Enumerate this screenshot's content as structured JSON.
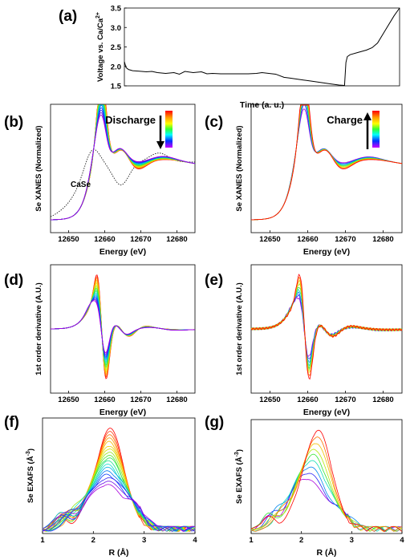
{
  "chart_data": [
    {
      "id": "a",
      "panel_label": "(a)",
      "type": "line",
      "xlabel": "Time (a. u.)",
      "ylabel": "Voltage vs. Ca/Ca",
      "ylabel_sup": "2+",
      "xlim": [
        0,
        100
      ],
      "ylim": [
        1.5,
        3.5
      ],
      "yticks": [
        "1.5",
        "2.0",
        "2.5",
        "3.0",
        "3.5"
      ],
      "series": [
        {
          "x": [
            0,
            0.6,
            1.5,
            3,
            5,
            8,
            10,
            12,
            15,
            18,
            20,
            22,
            25,
            28,
            30,
            32,
            35,
            38,
            40,
            45,
            48,
            50,
            55,
            58,
            60,
            65,
            68,
            70,
            72,
            75,
            78,
            80,
            80.5,
            81,
            82,
            85,
            88,
            90,
            92,
            95,
            98,
            100
          ],
          "y": [
            2.12,
            1.97,
            1.92,
            1.89,
            1.88,
            1.86,
            1.87,
            1.84,
            1.82,
            1.84,
            1.8,
            1.87,
            1.84,
            1.86,
            1.81,
            1.82,
            1.81,
            1.81,
            1.81,
            1.81,
            1.82,
            1.84,
            1.8,
            1.72,
            1.7,
            1.65,
            1.62,
            1.6,
            1.58,
            1.55,
            1.52,
            1.51,
            2.1,
            2.25,
            2.3,
            2.36,
            2.42,
            2.48,
            2.6,
            2.95,
            3.3,
            3.5
          ]
        }
      ]
    },
    {
      "id": "b",
      "panel_label": "(b)",
      "type": "line",
      "xlabel": "Energy (eV)",
      "ylabel": "Se XANES (Normalized)",
      "xlim": [
        12645,
        12685
      ],
      "xticks": [
        "12650",
        "12660",
        "12670",
        "12680"
      ],
      "annotation": "Discharge",
      "reference_label": "CaSe",
      "reference_style": "dotted",
      "curve_count": 18
    },
    {
      "id": "c",
      "panel_label": "(c)",
      "type": "line",
      "xlabel": "Energy (eV)",
      "ylabel": "Se XANES (Normalized)",
      "xlim": [
        12645,
        12685
      ],
      "xticks": [
        "12650",
        "12660",
        "12670",
        "12680"
      ],
      "annotation": "Charge",
      "curve_count": 9
    },
    {
      "id": "d",
      "panel_label": "(d)",
      "type": "line",
      "xlabel": "Energy (eV)",
      "ylabel": "1st order derivative (A.U.)",
      "xlim": [
        12645,
        12685
      ],
      "xticks": [
        "12650",
        "12660",
        "12670",
        "12680"
      ],
      "curve_count": 18
    },
    {
      "id": "e",
      "panel_label": "(e)",
      "type": "line",
      "xlabel": "Energy (eV)",
      "ylabel": "1st order derivative (A.U.)",
      "xlim": [
        12645,
        12685
      ],
      "xticks": [
        "12650",
        "12660",
        "12670",
        "12680"
      ],
      "curve_count": 9
    },
    {
      "id": "f",
      "panel_label": "(f)",
      "type": "line",
      "xlabel": "R (Å)",
      "ylabel": "Se EXAFS (Å",
      "ylabel_sup": "-3",
      "xlim": [
        1,
        4
      ],
      "xticks": [
        "1",
        "2",
        "3",
        "4"
      ],
      "curve_count": 18
    },
    {
      "id": "g",
      "panel_label": "(g)",
      "type": "line",
      "xlabel": "R (Å)",
      "ylabel": "Se EXAFS (Å",
      "ylabel_sup": "-3",
      "xlim": [
        1,
        4
      ],
      "xticks": [
        "1",
        "2",
        "3",
        "4"
      ],
      "curve_count": 9
    }
  ]
}
